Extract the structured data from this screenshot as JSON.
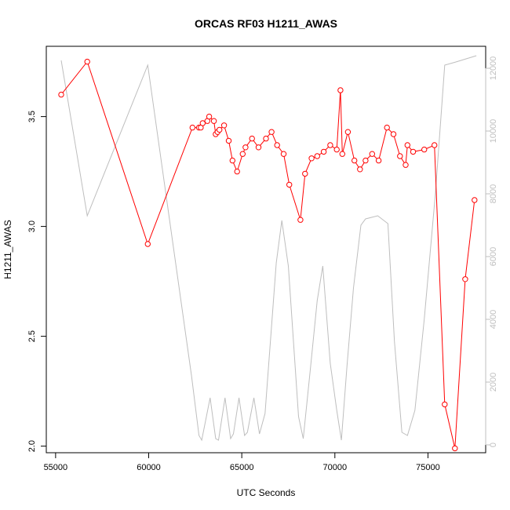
{
  "chart_data": {
    "type": "line",
    "title": "ORCAS RF03 H1211_AWAS",
    "xlabel": "UTC Seconds",
    "ylabel": "H1211_AWAS",
    "xlim": [
      54500,
      78100
    ],
    "ylim": [
      1.97,
      3.82
    ],
    "y2lim": [
      -250,
      12700
    ],
    "x_ticks": [
      55000,
      60000,
      65000,
      70000,
      75000
    ],
    "y_ticks": [
      2.0,
      2.5,
      3.0,
      3.5
    ],
    "y2_ticks": [
      0,
      2000,
      4000,
      6000,
      8000,
      10000,
      12000
    ],
    "x_tick_labels": [
      "55000",
      "60000",
      "65000",
      "70000",
      "75000"
    ],
    "y_tick_labels": [
      "2.0",
      "2.5",
      "3.0",
      "3.5"
    ],
    "y2_tick_labels": [
      "0",
      "2000",
      "4000",
      "6000",
      "8000",
      "10000",
      "12000"
    ],
    "colors": {
      "primary": "#ff0000",
      "secondary": "#bebebe",
      "axis": "#000000",
      "axis_right": "#bfbfbf"
    },
    "series": [
      {
        "color": "#ff0000",
        "marker": "open-circle",
        "axis": "left",
        "x": [
          55300,
          56700,
          59950,
          62350,
          62700,
          62800,
          62900,
          63150,
          63250,
          63500,
          63600,
          63700,
          63800,
          64050,
          64300,
          64500,
          64750,
          65050,
          65200,
          65550,
          65900,
          66300,
          66600,
          66900,
          67250,
          67550,
          68150,
          68400,
          68750,
          69050,
          69400,
          69750,
          70100,
          70300,
          70400,
          70700,
          71050,
          71350,
          71650,
          72000,
          72350,
          72800,
          73150,
          73500,
          73800,
          73900,
          74200,
          74800,
          75350,
          75900,
          76450,
          77000,
          77500
        ],
        "y": [
          3.6,
          3.75,
          2.92,
          3.45,
          3.45,
          3.45,
          3.47,
          3.48,
          3.5,
          3.48,
          3.42,
          3.43,
          3.44,
          3.46,
          3.39,
          3.3,
          3.25,
          3.33,
          3.36,
          3.4,
          3.36,
          3.4,
          3.43,
          3.37,
          3.33,
          3.19,
          3.03,
          3.24,
          3.31,
          3.32,
          3.34,
          3.37,
          3.35,
          3.62,
          3.33,
          3.43,
          3.3,
          3.26,
          3.3,
          3.33,
          3.3,
          3.45,
          3.42,
          3.32,
          3.28,
          3.37,
          3.34,
          3.35,
          3.37,
          2.19,
          1.99,
          2.76,
          3.12
        ]
      },
      {
        "color": "#bebebe",
        "marker": "none",
        "axis": "right",
        "x": [
          55300,
          56700,
          59950,
          62300,
          62700,
          62850,
          63300,
          63600,
          63750,
          64100,
          64400,
          64550,
          64850,
          65150,
          65300,
          65650,
          65950,
          66250,
          66850,
          67150,
          67500,
          68050,
          68300,
          68700,
          69050,
          69350,
          69750,
          70100,
          70350,
          70650,
          71000,
          71400,
          71650,
          72300,
          72850,
          73200,
          73600,
          73900,
          74300,
          74800,
          75400,
          75900,
          76500,
          77600
        ],
        "y": [
          12250,
          7300,
          12100,
          2200,
          300,
          150,
          1500,
          200,
          150,
          1500,
          200,
          350,
          1500,
          300,
          400,
          1500,
          350,
          1000,
          5800,
          7150,
          5700,
          900,
          200,
          2500,
          4600,
          5700,
          2600,
          1100,
          150,
          2500,
          5000,
          7000,
          7200,
          7300,
          7050,
          3300,
          400,
          300,
          1100,
          4000,
          8000,
          12100,
          12200,
          12400
        ]
      }
    ]
  }
}
